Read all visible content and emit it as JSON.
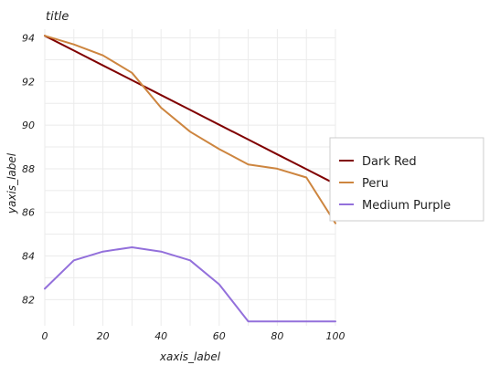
{
  "chart_data": {
    "type": "line",
    "title": "title",
    "xlabel": "xaxis_label",
    "ylabel": "yaxis_label",
    "xlim": [
      0,
      100
    ],
    "ylim": [
      80.8,
      94.4
    ],
    "x_ticks": [
      0,
      20,
      40,
      60,
      80,
      100
    ],
    "y_ticks": [
      82,
      84,
      86,
      88,
      90,
      92,
      94
    ],
    "grid": true,
    "legend_position": "right",
    "x": [
      0,
      10,
      20,
      30,
      40,
      50,
      60,
      70,
      80,
      90,
      100
    ],
    "series": [
      {
        "name": "Dark Red",
        "color": "#800000",
        "values": [
          94.1,
          93.42,
          92.74,
          92.06,
          91.38,
          90.7,
          90.02,
          89.34,
          88.66,
          87.98,
          87.3
        ]
      },
      {
        "name": "Peru",
        "color": "#cd853f",
        "values": [
          94.1,
          93.7,
          93.2,
          92.4,
          90.8,
          89.7,
          88.9,
          88.2,
          88.0,
          87.6,
          85.5
        ]
      },
      {
        "name": "Medium Purple",
        "color": "#9370db",
        "values": [
          82.5,
          83.8,
          84.2,
          84.4,
          84.2,
          83.8,
          82.7,
          81.0,
          81.0,
          81.0,
          81.0
        ]
      }
    ]
  }
}
